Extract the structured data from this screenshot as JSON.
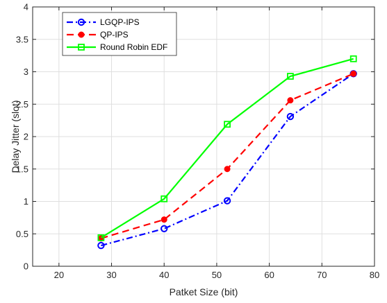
{
  "chart_data": {
    "type": "line",
    "xlabel": "Patket Size (bit)",
    "ylabel": "Delay Jitter (slot)",
    "xlim": [
      15,
      80
    ],
    "ylim": [
      0,
      4
    ],
    "xticks": [
      20,
      30,
      40,
      50,
      60,
      70,
      80
    ],
    "yticks": [
      0,
      0.5,
      1,
      1.5,
      2,
      2.5,
      3,
      3.5,
      4
    ],
    "grid": true,
    "legend_position": "top-left",
    "x": [
      28,
      40,
      52,
      64,
      76
    ],
    "series": [
      {
        "name": "LGQP-IPS",
        "values": [
          0.32,
          0.58,
          1.01,
          2.31,
          2.97
        ],
        "color": "#0000ff",
        "line_style": "dash-dot",
        "marker": "open-circle"
      },
      {
        "name": "QP-IPS",
        "values": [
          0.43,
          0.72,
          1.5,
          2.56,
          2.97
        ],
        "color": "#ff0000",
        "line_style": "dashed",
        "marker": "filled-circle"
      },
      {
        "name": "Round Robin EDF",
        "values": [
          0.44,
          1.04,
          2.19,
          2.93,
          3.2
        ],
        "color": "#00ff00",
        "line_style": "solid",
        "marker": "open-square"
      }
    ]
  }
}
